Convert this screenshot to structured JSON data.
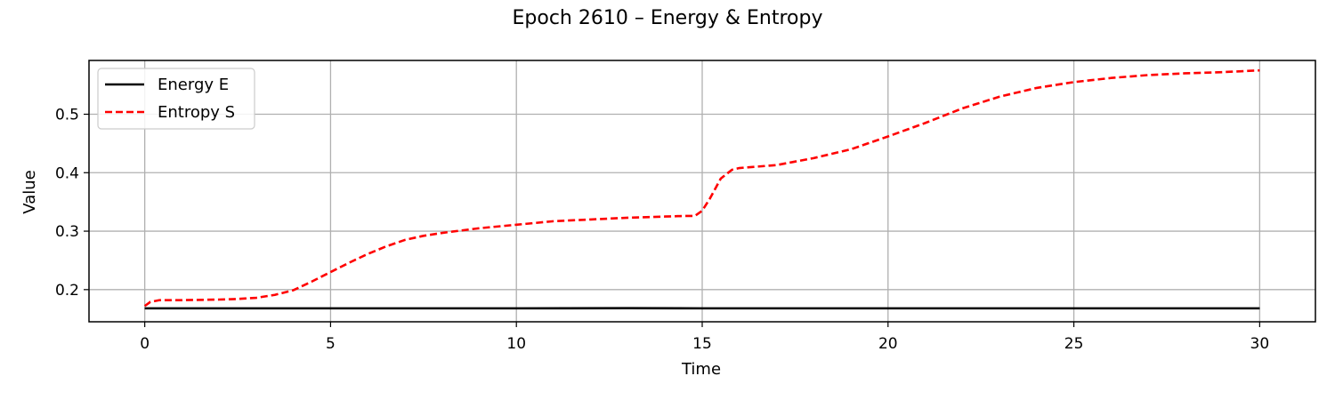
{
  "chart_data": {
    "type": "line",
    "title": "Epoch 2610 – Energy & Entropy",
    "xlabel": "Time",
    "ylabel": "Value",
    "xlim": [
      -1.5,
      31.5
    ],
    "ylim": [
      0.145,
      0.592
    ],
    "xticks": [
      0,
      5,
      10,
      15,
      20,
      25,
      30
    ],
    "yticks": [
      0.2,
      0.3,
      0.4,
      0.5
    ],
    "xtick_labels": [
      "0",
      "5",
      "10",
      "15",
      "20",
      "25",
      "30"
    ],
    "ytick_labels": [
      "0.2",
      "0.3",
      "0.4",
      "0.5"
    ],
    "grid": true,
    "legend": "upper-left",
    "series": [
      {
        "name": "Energy E",
        "color": "#000000",
        "style": "solid",
        "x": [
          0,
          5,
          10,
          13,
          15,
          20,
          25,
          30
        ],
        "y": [
          0.168,
          0.168,
          0.168,
          0.1683,
          0.168,
          0.168,
          0.168,
          0.168
        ]
      },
      {
        "name": "Entropy S",
        "color": "#ff0000",
        "style": "dashed",
        "x": [
          0,
          0.15,
          0.4,
          1,
          2,
          2.5,
          3,
          3.5,
          4,
          4.5,
          5,
          5.5,
          6,
          6.5,
          7,
          7.5,
          8,
          9,
          10,
          11,
          12,
          13,
          14,
          14.5,
          14.8,
          15,
          15.2,
          15.5,
          15.8,
          16,
          17,
          18,
          19,
          20,
          21,
          22,
          23,
          24,
          25,
          26,
          27,
          28,
          29,
          30
        ],
        "y": [
          0.172,
          0.179,
          0.182,
          0.182,
          0.183,
          0.184,
          0.186,
          0.191,
          0.199,
          0.214,
          0.23,
          0.246,
          0.261,
          0.274,
          0.285,
          0.292,
          0.297,
          0.305,
          0.311,
          0.317,
          0.32,
          0.323,
          0.325,
          0.326,
          0.326,
          0.335,
          0.355,
          0.39,
          0.405,
          0.408,
          0.413,
          0.425,
          0.44,
          0.462,
          0.485,
          0.51,
          0.53,
          0.545,
          0.555,
          0.562,
          0.567,
          0.57,
          0.572,
          0.575
        ]
      }
    ]
  }
}
